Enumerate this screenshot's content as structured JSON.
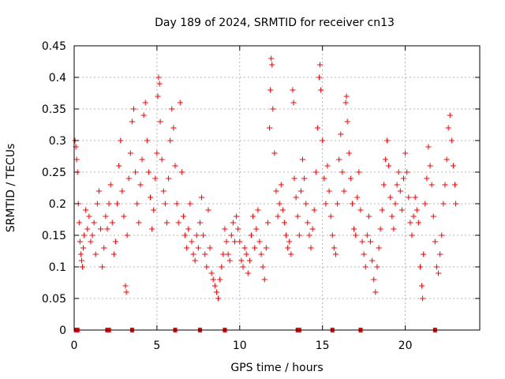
{
  "chart_data": {
    "type": "scatter",
    "title": "Day 189 of 2024, SRMTID for receiver cn13",
    "xlabel": "GPS time / hours",
    "ylabel": "SRMTID / TECUs",
    "xlim": [
      0,
      24.5
    ],
    "ylim": [
      0,
      0.45
    ],
    "grid": true,
    "marker": "+",
    "color": "#ff0000",
    "x_ticks": [
      {
        "value": 0,
        "label": "0"
      },
      {
        "value": 5,
        "label": "5"
      },
      {
        "value": 10,
        "label": "10"
      },
      {
        "value": 15,
        "label": "15"
      },
      {
        "value": 20,
        "label": "20"
      }
    ],
    "y_ticks": [
      {
        "value": 0,
        "label": "0"
      },
      {
        "value": 0.05,
        "label": "0.05"
      },
      {
        "value": 0.1,
        "label": "0.1"
      },
      {
        "value": 0.15,
        "label": "0.15"
      },
      {
        "value": 0.2,
        "label": "0.2"
      },
      {
        "value": 0.25,
        "label": "0.25"
      },
      {
        "value": 0.3,
        "label": "0.3"
      },
      {
        "value": 0.35,
        "label": "0.35"
      },
      {
        "value": 0.4,
        "label": "0.4"
      },
      {
        "value": 0.45,
        "label": "0.45"
      }
    ],
    "series": [
      {
        "name": "SRMTID",
        "points": [
          [
            0.05,
            0.3
          ],
          [
            0.1,
            0.29
          ],
          [
            0.15,
            0.27
          ],
          [
            0.2,
            0.25
          ],
          [
            0.25,
            0.2
          ],
          [
            0.3,
            0.17
          ],
          [
            0.35,
            0.14
          ],
          [
            0.4,
            0.12
          ],
          [
            0.45,
            0.11
          ],
          [
            0.5,
            0.1
          ],
          [
            0.55,
            0.13
          ],
          [
            0.6,
            0.15
          ],
          [
            0.7,
            0.19
          ],
          [
            0.8,
            0.16
          ],
          [
            0.9,
            0.18
          ],
          [
            1.0,
            0.14
          ],
          [
            1.1,
            0.15
          ],
          [
            1.2,
            0.17
          ],
          [
            1.3,
            0.12
          ],
          [
            1.4,
            0.2
          ],
          [
            1.5,
            0.22
          ],
          [
            1.6,
            0.16
          ],
          [
            1.7,
            0.1
          ],
          [
            1.8,
            0.13
          ],
          [
            1.9,
            0.18
          ],
          [
            2.0,
            0.16
          ],
          [
            2.1,
            0.2
          ],
          [
            2.2,
            0.23
          ],
          [
            2.3,
            0.17
          ],
          [
            2.4,
            0.12
          ],
          [
            2.5,
            0.14
          ],
          [
            2.6,
            0.2
          ],
          [
            2.7,
            0.26
          ],
          [
            2.8,
            0.3
          ],
          [
            2.9,
            0.22
          ],
          [
            3.0,
            0.18
          ],
          [
            3.1,
            0.07
          ],
          [
            3.15,
            0.06
          ],
          [
            3.2,
            0.15
          ],
          [
            3.3,
            0.24
          ],
          [
            3.4,
            0.28
          ],
          [
            3.5,
            0.33
          ],
          [
            3.6,
            0.35
          ],
          [
            3.7,
            0.25
          ],
          [
            3.8,
            0.2
          ],
          [
            3.9,
            0.17
          ],
          [
            4.0,
            0.23
          ],
          [
            4.1,
            0.27
          ],
          [
            4.2,
            0.34
          ],
          [
            4.3,
            0.36
          ],
          [
            4.4,
            0.3
          ],
          [
            4.5,
            0.25
          ],
          [
            4.6,
            0.21
          ],
          [
            4.7,
            0.16
          ],
          [
            4.8,
            0.19
          ],
          [
            4.9,
            0.24
          ],
          [
            5.0,
            0.28
          ],
          [
            5.05,
            0.37
          ],
          [
            5.1,
            0.4
          ],
          [
            5.15,
            0.39
          ],
          [
            5.2,
            0.33
          ],
          [
            5.3,
            0.27
          ],
          [
            5.4,
            0.22
          ],
          [
            5.5,
            0.2
          ],
          [
            5.6,
            0.17
          ],
          [
            5.7,
            0.24
          ],
          [
            5.8,
            0.3
          ],
          [
            5.9,
            0.35
          ],
          [
            6.0,
            0.32
          ],
          [
            6.1,
            0.26
          ],
          [
            6.2,
            0.2
          ],
          [
            6.3,
            0.17
          ],
          [
            6.4,
            0.36
          ],
          [
            6.5,
            0.25
          ],
          [
            6.6,
            0.18
          ],
          [
            6.7,
            0.15
          ],
          [
            6.8,
            0.13
          ],
          [
            6.9,
            0.16
          ],
          [
            7.0,
            0.2
          ],
          [
            7.1,
            0.14
          ],
          [
            7.2,
            0.12
          ],
          [
            7.3,
            0.11
          ],
          [
            7.4,
            0.15
          ],
          [
            7.5,
            0.13
          ],
          [
            7.6,
            0.17
          ],
          [
            7.7,
            0.21
          ],
          [
            7.8,
            0.15
          ],
          [
            7.9,
            0.12
          ],
          [
            8.0,
            0.1
          ],
          [
            8.1,
            0.19
          ],
          [
            8.2,
            0.13
          ],
          [
            8.3,
            0.09
          ],
          [
            8.4,
            0.08
          ],
          [
            8.5,
            0.07
          ],
          [
            8.6,
            0.06
          ],
          [
            8.7,
            0.05
          ],
          [
            8.8,
            0.08
          ],
          [
            8.9,
            0.1
          ],
          [
            9.0,
            0.12
          ],
          [
            9.1,
            0.16
          ],
          [
            9.2,
            0.14
          ],
          [
            9.3,
            0.12
          ],
          [
            9.4,
            0.11
          ],
          [
            9.5,
            0.15
          ],
          [
            9.6,
            0.17
          ],
          [
            9.7,
            0.14
          ],
          [
            9.8,
            0.18
          ],
          [
            9.9,
            0.16
          ],
          [
            10.0,
            0.14
          ],
          [
            10.1,
            0.11
          ],
          [
            10.2,
            0.1
          ],
          [
            10.3,
            0.13
          ],
          [
            10.4,
            0.12
          ],
          [
            10.5,
            0.09
          ],
          [
            10.6,
            0.11
          ],
          [
            10.7,
            0.15
          ],
          [
            10.8,
            0.18
          ],
          [
            10.9,
            0.13
          ],
          [
            11.0,
            0.16
          ],
          [
            11.1,
            0.19
          ],
          [
            11.2,
            0.14
          ],
          [
            11.3,
            0.12
          ],
          [
            11.4,
            0.1
          ],
          [
            11.5,
            0.08
          ],
          [
            11.6,
            0.13
          ],
          [
            11.7,
            0.17
          ],
          [
            11.8,
            0.32
          ],
          [
            11.85,
            0.38
          ],
          [
            11.9,
            0.43
          ],
          [
            11.95,
            0.42
          ],
          [
            12.0,
            0.35
          ],
          [
            12.1,
            0.28
          ],
          [
            12.2,
            0.22
          ],
          [
            12.3,
            0.18
          ],
          [
            12.4,
            0.2
          ],
          [
            12.5,
            0.23
          ],
          [
            12.6,
            0.19
          ],
          [
            12.7,
            0.17
          ],
          [
            12.8,
            0.15
          ],
          [
            12.9,
            0.13
          ],
          [
            13.0,
            0.14
          ],
          [
            13.1,
            0.12
          ],
          [
            13.2,
            0.38
          ],
          [
            13.25,
            0.36
          ],
          [
            13.3,
            0.24
          ],
          [
            13.4,
            0.21
          ],
          [
            13.5,
            0.18
          ],
          [
            13.6,
            0.15
          ],
          [
            13.7,
            0.22
          ],
          [
            13.8,
            0.27
          ],
          [
            13.9,
            0.24
          ],
          [
            14.0,
            0.2
          ],
          [
            14.1,
            0.17
          ],
          [
            14.2,
            0.15
          ],
          [
            14.3,
            0.13
          ],
          [
            14.4,
            0.16
          ],
          [
            14.5,
            0.19
          ],
          [
            14.6,
            0.25
          ],
          [
            14.7,
            0.32
          ],
          [
            14.8,
            0.4
          ],
          [
            14.85,
            0.42
          ],
          [
            14.9,
            0.38
          ],
          [
            15.0,
            0.3
          ],
          [
            15.1,
            0.24
          ],
          [
            15.2,
            0.2
          ],
          [
            15.3,
            0.26
          ],
          [
            15.4,
            0.22
          ],
          [
            15.5,
            0.18
          ],
          [
            15.6,
            0.15
          ],
          [
            15.7,
            0.13
          ],
          [
            15.8,
            0.12
          ],
          [
            15.9,
            0.2
          ],
          [
            16.0,
            0.27
          ],
          [
            16.1,
            0.31
          ],
          [
            16.2,
            0.25
          ],
          [
            16.3,
            0.22
          ],
          [
            16.4,
            0.36
          ],
          [
            16.45,
            0.37
          ],
          [
            16.5,
            0.33
          ],
          [
            16.6,
            0.28
          ],
          [
            16.7,
            0.24
          ],
          [
            16.8,
            0.2
          ],
          [
            16.9,
            0.16
          ],
          [
            17.0,
            0.15
          ],
          [
            17.1,
            0.21
          ],
          [
            17.2,
            0.25
          ],
          [
            17.3,
            0.19
          ],
          [
            17.4,
            0.14
          ],
          [
            17.5,
            0.12
          ],
          [
            17.6,
            0.1
          ],
          [
            17.7,
            0.15
          ],
          [
            17.8,
            0.18
          ],
          [
            17.9,
            0.14
          ],
          [
            18.0,
            0.11
          ],
          [
            18.1,
            0.08
          ],
          [
            18.2,
            0.06
          ],
          [
            18.3,
            0.1
          ],
          [
            18.4,
            0.13
          ],
          [
            18.5,
            0.16
          ],
          [
            18.6,
            0.19
          ],
          [
            18.7,
            0.23
          ],
          [
            18.8,
            0.27
          ],
          [
            18.9,
            0.3
          ],
          [
            19.0,
            0.26
          ],
          [
            19.1,
            0.21
          ],
          [
            19.2,
            0.18
          ],
          [
            19.3,
            0.16
          ],
          [
            19.4,
            0.2
          ],
          [
            19.5,
            0.23
          ],
          [
            19.6,
            0.25
          ],
          [
            19.7,
            0.22
          ],
          [
            19.8,
            0.19
          ],
          [
            19.9,
            0.24
          ],
          [
            20.0,
            0.28
          ],
          [
            20.1,
            0.25
          ],
          [
            20.2,
            0.21
          ],
          [
            20.3,
            0.17
          ],
          [
            20.4,
            0.15
          ],
          [
            20.5,
            0.18
          ],
          [
            20.6,
            0.21
          ],
          [
            20.7,
            0.19
          ],
          [
            20.8,
            0.17
          ],
          [
            20.9,
            0.1
          ],
          [
            21.0,
            0.07
          ],
          [
            21.05,
            0.05
          ],
          [
            21.1,
            0.12
          ],
          [
            21.2,
            0.2
          ],
          [
            21.3,
            0.24
          ],
          [
            21.4,
            0.29
          ],
          [
            21.5,
            0.26
          ],
          [
            21.6,
            0.23
          ],
          [
            21.7,
            0.18
          ],
          [
            21.8,
            0.14
          ],
          [
            21.9,
            0.1
          ],
          [
            22.0,
            0.09
          ],
          [
            22.1,
            0.12
          ],
          [
            22.2,
            0.15
          ],
          [
            22.3,
            0.2
          ],
          [
            22.4,
            0.23
          ],
          [
            22.5,
            0.27
          ],
          [
            22.6,
            0.32
          ],
          [
            22.7,
            0.34
          ],
          [
            22.8,
            0.3
          ],
          [
            22.9,
            0.26
          ],
          [
            23.0,
            0.23
          ],
          [
            23.05,
            0.2
          ]
        ]
      }
    ],
    "baseline_markers": [
      0.1,
      0.2,
      2.0,
      2.1,
      3.5,
      6.1,
      7.6,
      9.1,
      13.5,
      13.6,
      15.6,
      17.3,
      21.8
    ]
  }
}
